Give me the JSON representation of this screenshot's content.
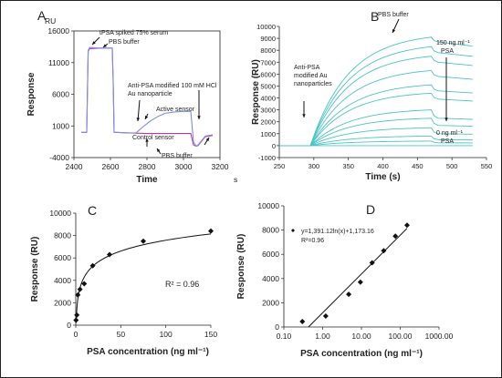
{
  "chart_data": [
    {
      "panel": "A",
      "type": "line",
      "unit_label": "RU",
      "xlabel": "Time",
      "x_unit": "s",
      "ylabel": "Response",
      "xlim": [
        2400,
        3200
      ],
      "ylim": [
        -4000,
        16000
      ],
      "x_ticks": [
        "2400",
        "2600",
        "2800",
        "3000",
        "3200"
      ],
      "y_ticks": [
        "-4000",
        "1000",
        "6000",
        "11000",
        "16000"
      ],
      "series": [
        {
          "color": "#c0399a",
          "x": [
            2440,
            2470,
            2478,
            2486,
            2540,
            2600,
            2610,
            2615,
            2620,
            2700,
            2800,
            2900,
            3000,
            3040,
            3055,
            3070,
            3080,
            3120,
            3160
          ],
          "y": [
            -20,
            -20,
            12800,
            13200,
            13300,
            13300,
            13300,
            8000,
            0,
            -100,
            -200,
            -200,
            -200,
            -200,
            -2000,
            -2200,
            -2100,
            -700,
            -500
          ]
        },
        {
          "color": "#7a8ee6",
          "x": [
            2440,
            2470,
            2478,
            2486,
            2540,
            2600,
            2610,
            2615,
            2620,
            2700,
            2740,
            2780,
            2820,
            2860,
            2900,
            2950,
            3000,
            3040,
            3055,
            3070,
            3080,
            3120,
            3160
          ],
          "y": [
            -20,
            -20,
            12900,
            13400,
            13300,
            13300,
            13300,
            8000,
            0,
            -100,
            -100,
            900,
            1800,
            2500,
            3000,
            3200,
            3300,
            3300,
            -1500,
            -2200,
            -2000,
            -600,
            -400
          ]
        }
      ],
      "annotations": [
        "tPSA spiked 75% serum",
        "PBS buffer",
        "Anti-PSA   modified",
        "Au nanoparticle",
        "Active sensor",
        "Control sensor",
        "PBS buffer",
        "100 mM HCl"
      ]
    },
    {
      "panel": "B",
      "type": "line",
      "xlabel": "Time (s)",
      "ylabel": "Response (RU)",
      "xlim": [
        250,
        550
      ],
      "ylim": [
        -1000,
        10000
      ],
      "x_ticks": [
        "250",
        "300",
        "350",
        "400",
        "450",
        "500",
        "550"
      ],
      "y_ticks": [
        "-1000",
        "0",
        "1000",
        "2000",
        "3000",
        "4000",
        "5000",
        "6000",
        "7000",
        "8000",
        "9000",
        "10000"
      ],
      "color": "#4cc4c4",
      "injection_start": 295,
      "injection_end": 470,
      "series": [
        {
          "plateau": 0,
          "tail": 0
        },
        {
          "plateau": 380,
          "tail": 240
        },
        {
          "plateau": 800,
          "tail": 500
        },
        {
          "plateau": 1500,
          "tail": 1000
        },
        {
          "plateau": 2300,
          "tail": 1700
        },
        {
          "plateau": 3000,
          "tail": 2300
        },
        {
          "plateau": 4400,
          "tail": 3900
        },
        {
          "plateau": 5100,
          "tail": 4600
        },
        {
          "plateau": 6300,
          "tail": 5800
        },
        {
          "plateau": 7500,
          "tail": 7000
        },
        {
          "plateau": 8300,
          "tail": 7800
        },
        {
          "plateau": 9100,
          "tail": 8700
        }
      ],
      "annotations": [
        "PBS buffer",
        "Anti-PSA",
        "modified Au",
        "nanoparticles",
        "150 ng ml⁻¹",
        "PSA",
        "0 ng ml⁻¹",
        "PSA"
      ]
    },
    {
      "panel": "C",
      "type": "scatter",
      "xlabel": "PSA concentration (ng ml⁻¹)",
      "ylabel": "Response (RU)",
      "xlim": [
        0,
        150
      ],
      "ylim": [
        0,
        10000
      ],
      "x_ticks": [
        "0",
        "50",
        "100",
        "150"
      ],
      "y_ticks": [
        "0",
        "2000",
        "4000",
        "6000",
        "8000",
        "10000"
      ],
      "points": {
        "x": [
          0.3,
          1.2,
          2.3,
          4.7,
          9.4,
          18.8,
          37.5,
          75,
          150
        ],
        "y": [
          450,
          900,
          2700,
          3200,
          3700,
          5300,
          6300,
          7500,
          8400
        ]
      },
      "fit": {
        "model": "log",
        "a": 1391.12,
        "b": 1173.16
      },
      "r2_label": "R² = 0.96"
    },
    {
      "panel": "D",
      "type": "scatter",
      "x_scale": "log",
      "xlabel": "PSA concentration (ng ml⁻¹)",
      "ylabel": "Response (RU)",
      "xlim": [
        0.1,
        1000
      ],
      "ylim": [
        0,
        10000
      ],
      "x_ticks": [
        "0.10",
        "1.00",
        "10.00",
        "100.00",
        "1000.00"
      ],
      "y_ticks": [
        "0",
        "2000",
        "4000",
        "6000",
        "8000",
        "10000"
      ],
      "points": {
        "x": [
          0.3,
          1.2,
          4.7,
          9.4,
          18.8,
          37.5,
          75,
          150
        ],
        "y": [
          450,
          900,
          2700,
          3700,
          5300,
          6300,
          7500,
          8400
        ]
      },
      "fit": {
        "model": "log",
        "a": 1391.12,
        "b": 1173.16
      },
      "equation_label": "y=1,391.12ln(x)+1,173.16",
      "r2_label": "R²=0.96"
    }
  ]
}
